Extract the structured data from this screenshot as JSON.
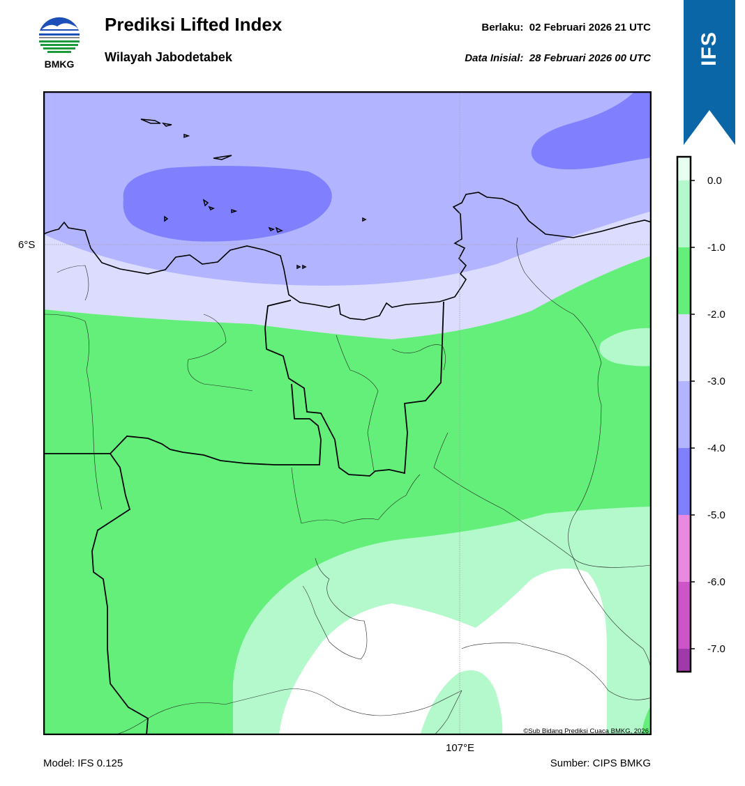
{
  "header": {
    "title": "Prediksi Lifted Index",
    "subtitle": "Wilayah Jabodetabek",
    "valid_label": "Berlaku:",
    "valid_value": "02 Februari 2026 21 UTC",
    "init_label": "Data Inisial:",
    "init_value": "28 Februari 2026 00 UTC"
  },
  "logo": {
    "text": "BMKG",
    "icon": "bmkg-logo-icon"
  },
  "badge": {
    "text": "IFS",
    "color": "#0b66a8"
  },
  "map": {
    "lat_label": "6°S",
    "lon_label": "107°E",
    "credit": "©Sub Bidang Prediksi Cuaca BMKG, 2026",
    "colors": {
      "band_0_to_-1": "#b3f9cc",
      "band_-1_to_-2": "#63ef79",
      "band_-2_to_-3": "#dcdcff",
      "band_-3_to_-4": "#b3b4ff",
      "band_-4_to_-5": "#8080ff",
      "above_0": "#ffffff"
    }
  },
  "colorbar": {
    "ticks": [
      "0.0",
      "-1.0",
      "-2.0",
      "-3.0",
      "-4.0",
      "-5.0",
      "-6.0",
      "-7.0"
    ],
    "colors": [
      "#e6fff0",
      "#b3f9cc",
      "#63ef79",
      "#dcdcff",
      "#b3b4ff",
      "#8080ff",
      "#e88ae0",
      "#cc55c8",
      "#a03aa8",
      "#7a1a82"
    ]
  },
  "footer": {
    "model": "Model: IFS 0.125",
    "source": "Sumber: CIPS BMKG"
  }
}
